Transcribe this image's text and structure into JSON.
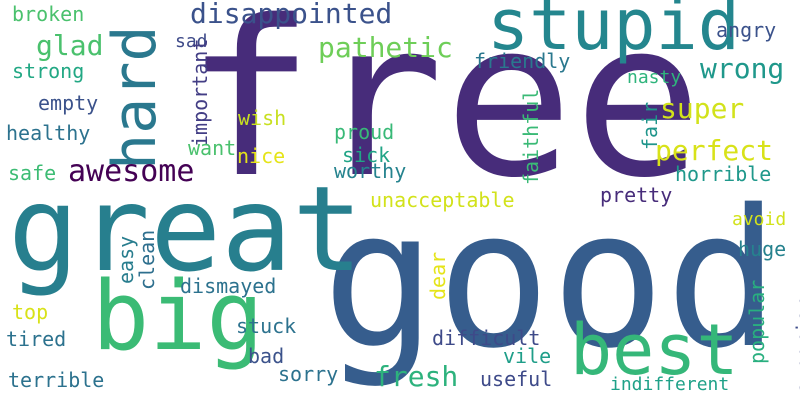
{
  "words": [
    {
      "text": "free",
      "color": "#472c7a"
    },
    {
      "text": "good",
      "color": "#365d8d"
    },
    {
      "text": "great",
      "color": "#277f8e"
    },
    {
      "text": "big",
      "color": "#3bbb75"
    },
    {
      "text": "best",
      "color": "#35b779"
    },
    {
      "text": "stupid",
      "color": "#24868e"
    },
    {
      "text": "hard",
      "color": "#2a788e"
    },
    {
      "text": "awesome",
      "color": "#440154"
    },
    {
      "text": "disappointed",
      "color": "#3b528b"
    },
    {
      "text": "pathetic",
      "color": "#6ece58"
    },
    {
      "text": "glad",
      "color": "#4ac16d"
    },
    {
      "text": "perfect",
      "color": "#d8e219"
    },
    {
      "text": "super",
      "color": "#d2e21b"
    },
    {
      "text": "wrong",
      "color": "#1f988b"
    },
    {
      "text": "fresh",
      "color": "#2db27d"
    },
    {
      "text": "broken",
      "color": "#4ac16d"
    },
    {
      "text": "strong",
      "color": "#22a884"
    },
    {
      "text": "empty",
      "color": "#3b528b"
    },
    {
      "text": "healthy",
      "color": "#2c728e"
    },
    {
      "text": "safe",
      "color": "#3dbc74"
    },
    {
      "text": "sad",
      "color": "#3e4a89"
    },
    {
      "text": "important",
      "color": "#433e85"
    },
    {
      "text": "friendly",
      "color": "#2a788e"
    },
    {
      "text": "angry",
      "color": "#3b528b"
    },
    {
      "text": "nasty",
      "color": "#2fb47c"
    },
    {
      "text": "wish",
      "color": "#c8e020"
    },
    {
      "text": "want",
      "color": "#4ac16d"
    },
    {
      "text": "nice",
      "color": "#e5e419"
    },
    {
      "text": "proud",
      "color": "#38b977"
    },
    {
      "text": "sick",
      "color": "#20a486"
    },
    {
      "text": "worthy",
      "color": "#25838e"
    },
    {
      "text": "faithful",
      "color": "#3aba76"
    },
    {
      "text": "fair",
      "color": "#1f958b"
    },
    {
      "text": "horrible",
      "color": "#1f988b"
    },
    {
      "text": "pretty",
      "color": "#472c7a"
    },
    {
      "text": "unacceptable",
      "color": "#d2e21b"
    },
    {
      "text": "avoid",
      "color": "#d2e21b"
    },
    {
      "text": "huge",
      "color": "#26828e"
    },
    {
      "text": "easy",
      "color": "#287d8e"
    },
    {
      "text": "clean",
      "color": "#2e6f8e"
    },
    {
      "text": "dismayed",
      "color": "#2c728e"
    },
    {
      "text": "dear",
      "color": "#e5e419"
    },
    {
      "text": "superior",
      "color": "#3e4c8a"
    },
    {
      "text": "popular",
      "color": "#29af7f"
    },
    {
      "text": "top",
      "color": "#d8e219"
    },
    {
      "text": "tired",
      "color": "#2c728e"
    },
    {
      "text": "stuck",
      "color": "#2c728e"
    },
    {
      "text": "bad",
      "color": "#3b528b"
    },
    {
      "text": "difficult",
      "color": "#3e4a89"
    },
    {
      "text": "vile",
      "color": "#1f9e89"
    },
    {
      "text": "sorry",
      "color": "#2c728e"
    },
    {
      "text": "useful",
      "color": "#3e4a89"
    },
    {
      "text": "terrible",
      "color": "#2c728e"
    },
    {
      "text": "indifferent",
      "color": "#1fa188"
    }
  ]
}
